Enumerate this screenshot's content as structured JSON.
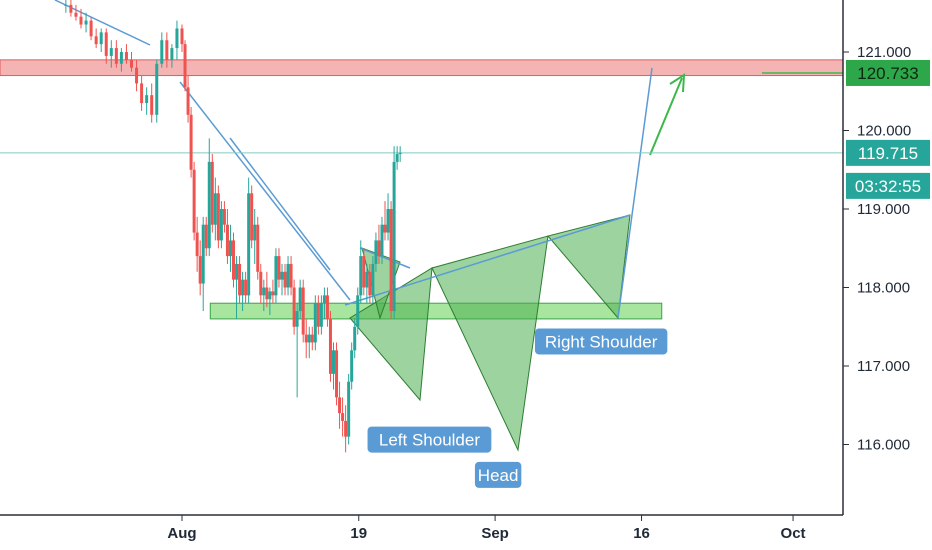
{
  "chart_data": {
    "type": "candlestick",
    "title": "",
    "x_ticks": [
      "Aug",
      "19",
      "Sep",
      "16",
      "Oct"
    ],
    "y_ticks": [
      "121.000",
      "120.000",
      "119.000",
      "118.000",
      "117.000",
      "116.000"
    ],
    "ylim": [
      115.5,
      121.6
    ],
    "grid": false,
    "colors": {
      "up": "#26a69a",
      "down": "#ef5350",
      "trendline": "#5b9bd5",
      "support": "#7ed67e",
      "resistance": "#f08080"
    },
    "resistance_zone": [
      120.7,
      120.9
    ],
    "support_zone": [
      117.6,
      117.8
    ],
    "current_price": "119.715",
    "current_price_level": 119.715,
    "countdown": "03:32:55",
    "target_price": "120.733",
    "target_level": 120.733,
    "annotations": [
      {
        "text": "Left Shoulder",
        "x": 24.5,
        "y": 116.05
      },
      {
        "text": "Head",
        "x": 31.3,
        "y": 115.6
      },
      {
        "text": "Right Shoulder",
        "x": 41.5,
        "y": 117.3
      }
    ],
    "candles": [
      [
        -11.5,
        121.6,
        121.7,
        121.5,
        121.6
      ],
      [
        -11.0,
        121.6,
        121.7,
        121.45,
        121.5
      ],
      [
        -10.5,
        121.5,
        121.6,
        121.4,
        121.45
      ],
      [
        -10.0,
        121.45,
        121.55,
        121.3,
        121.35
      ],
      [
        -9.5,
        121.35,
        121.5,
        121.25,
        121.4
      ],
      [
        -9.0,
        121.4,
        121.45,
        121.15,
        121.2
      ],
      [
        -8.5,
        121.2,
        121.3,
        121.05,
        121.1
      ],
      [
        -8.0,
        121.1,
        121.3,
        121.0,
        121.25
      ],
      [
        -7.5,
        121.25,
        121.3,
        120.85,
        120.95
      ],
      [
        -7.0,
        120.95,
        121.15,
        120.8,
        121.05
      ],
      [
        -6.5,
        121.05,
        121.15,
        120.8,
        120.85
      ],
      [
        -6.0,
        120.85,
        121.05,
        120.75,
        121.0
      ],
      [
        -5.5,
        121.0,
        121.1,
        120.85,
        120.9
      ],
      [
        -5.0,
        120.9,
        121.0,
        120.75,
        120.8
      ],
      [
        -4.5,
        120.8,
        120.9,
        120.5,
        120.6
      ],
      [
        -4.0,
        120.6,
        120.7,
        120.25,
        120.35
      ],
      [
        -3.5,
        120.35,
        120.55,
        120.2,
        120.45
      ],
      [
        -3.0,
        120.45,
        120.6,
        120.1,
        120.2
      ],
      [
        -2.5,
        120.2,
        120.9,
        120.1,
        120.85
      ],
      [
        -2.0,
        120.85,
        121.25,
        120.8,
        121.15
      ],
      [
        -1.5,
        121.15,
        121.25,
        120.8,
        120.9
      ],
      [
        -1.0,
        120.9,
        121.1,
        120.8,
        121.05
      ],
      [
        -0.5,
        121.05,
        121.4,
        120.9,
        121.3
      ],
      [
        0.0,
        121.3,
        121.35,
        121.0,
        121.1
      ],
      [
        0.3,
        121.1,
        121.15,
        120.5,
        120.55
      ],
      [
        0.6,
        120.55,
        120.7,
        120.1,
        120.2
      ],
      [
        0.9,
        120.2,
        120.3,
        119.4,
        119.5
      ],
      [
        1.2,
        119.5,
        119.6,
        118.6,
        118.7
      ],
      [
        1.5,
        118.7,
        118.9,
        118.2,
        118.4
      ],
      [
        1.8,
        118.4,
        118.6,
        117.9,
        118.05
      ],
      [
        2.1,
        118.05,
        118.9,
        117.7,
        118.8
      ],
      [
        2.4,
        118.8,
        118.9,
        118.4,
        118.5
      ],
      [
        2.7,
        118.5,
        119.9,
        118.4,
        119.6
      ],
      [
        3.0,
        119.6,
        119.7,
        118.7,
        118.8
      ],
      [
        3.3,
        118.8,
        119.4,
        118.6,
        119.2
      ],
      [
        3.6,
        119.2,
        119.3,
        118.5,
        118.6
      ],
      [
        3.9,
        118.6,
        119.1,
        118.5,
        119.0
      ],
      [
        4.2,
        119.0,
        119.1,
        118.7,
        118.8
      ],
      [
        4.5,
        118.8,
        119.0,
        118.3,
        118.4
      ],
      [
        4.8,
        118.4,
        118.8,
        118.2,
        118.6
      ],
      [
        5.1,
        118.6,
        118.7,
        118.0,
        118.1
      ],
      [
        5.4,
        118.1,
        118.4,
        117.6,
        118.3
      ],
      [
        5.7,
        118.3,
        118.4,
        117.8,
        117.9
      ],
      [
        6.0,
        117.9,
        118.2,
        117.7,
        118.1
      ],
      [
        6.3,
        118.1,
        118.2,
        117.8,
        117.9
      ],
      [
        6.6,
        117.9,
        119.4,
        117.8,
        119.2
      ],
      [
        6.9,
        119.2,
        119.3,
        118.5,
        118.6
      ],
      [
        7.2,
        118.6,
        119.0,
        118.3,
        118.8
      ],
      [
        7.5,
        118.8,
        118.9,
        118.1,
        118.2
      ],
      [
        7.8,
        118.2,
        118.3,
        117.8,
        117.9
      ],
      [
        8.1,
        117.9,
        118.1,
        117.7,
        118.0
      ],
      [
        8.4,
        118.0,
        118.2,
        117.75,
        117.85
      ],
      [
        8.7,
        117.85,
        118.0,
        117.65,
        117.95
      ],
      [
        9.0,
        117.95,
        118.1,
        117.8,
        117.9
      ],
      [
        9.3,
        117.9,
        118.5,
        117.8,
        118.4
      ],
      [
        9.6,
        118.4,
        118.5,
        118.0,
        118.1
      ],
      [
        9.9,
        118.1,
        118.3,
        117.9,
        118.2
      ],
      [
        10.2,
        118.2,
        118.3,
        117.9,
        118.0
      ],
      [
        10.5,
        118.0,
        118.4,
        117.9,
        118.3
      ],
      [
        10.8,
        118.3,
        118.4,
        117.9,
        118.0
      ],
      [
        11.1,
        118.0,
        118.1,
        117.4,
        117.5
      ],
      [
        11.4,
        117.5,
        117.8,
        116.6,
        117.7
      ],
      [
        11.7,
        117.7,
        118.1,
        117.6,
        118.0
      ],
      [
        12.0,
        118.0,
        118.1,
        117.3,
        117.4
      ],
      [
        12.3,
        117.4,
        117.6,
        117.1,
        117.3
      ],
      [
        12.6,
        117.3,
        117.5,
        117.1,
        117.4
      ],
      [
        12.9,
        117.4,
        117.5,
        117.2,
        117.3
      ],
      [
        13.2,
        117.3,
        117.9,
        117.2,
        117.8
      ],
      [
        13.5,
        117.8,
        117.9,
        117.4,
        117.5
      ],
      [
        13.8,
        117.5,
        117.9,
        117.4,
        117.8
      ],
      [
        14.1,
        117.8,
        118.0,
        117.6,
        117.9
      ],
      [
        14.4,
        117.9,
        118.0,
        117.5,
        117.6
      ],
      [
        14.7,
        117.6,
        117.7,
        116.8,
        116.9
      ],
      [
        15.0,
        116.9,
        117.3,
        116.7,
        117.2
      ],
      [
        15.3,
        117.2,
        117.3,
        116.5,
        116.6
      ],
      [
        15.6,
        116.6,
        116.8,
        116.2,
        116.4
      ],
      [
        15.9,
        116.4,
        116.6,
        116.1,
        116.3
      ],
      [
        16.2,
        116.3,
        116.5,
        115.9,
        116.1
      ],
      [
        16.5,
        116.1,
        116.9,
        116.0,
        116.8
      ],
      [
        16.8,
        116.8,
        117.3,
        116.7,
        117.2
      ],
      [
        17.1,
        117.2,
        117.6,
        117.1,
        117.5
      ],
      [
        17.4,
        117.5,
        118.0,
        117.4,
        117.9
      ],
      [
        17.7,
        117.9,
        118.6,
        117.8,
        118.4
      ],
      [
        18.0,
        118.4,
        118.5,
        117.9,
        118.0
      ],
      [
        18.3,
        118.0,
        118.3,
        117.8,
        118.2
      ],
      [
        18.6,
        118.2,
        118.3,
        117.8,
        117.9
      ],
      [
        18.9,
        117.9,
        118.4,
        117.8,
        118.3
      ],
      [
        19.2,
        118.3,
        118.7,
        118.2,
        118.6
      ],
      [
        19.5,
        118.6,
        118.8,
        118.3,
        118.4
      ],
      [
        19.8,
        118.4,
        118.9,
        118.3,
        118.8
      ],
      [
        20.1,
        118.8,
        119.1,
        118.6,
        118.7
      ],
      [
        20.4,
        118.7,
        119.2,
        118.6,
        119.0
      ],
      [
        20.7,
        119.0,
        119.1,
        117.6,
        117.7
      ],
      [
        21.0,
        117.7,
        119.8,
        117.6,
        119.6
      ],
      [
        21.3,
        119.6,
        119.8,
        119.5,
        119.7
      ],
      [
        21.6,
        119.7,
        119.8,
        119.6,
        119.715
      ]
    ]
  }
}
